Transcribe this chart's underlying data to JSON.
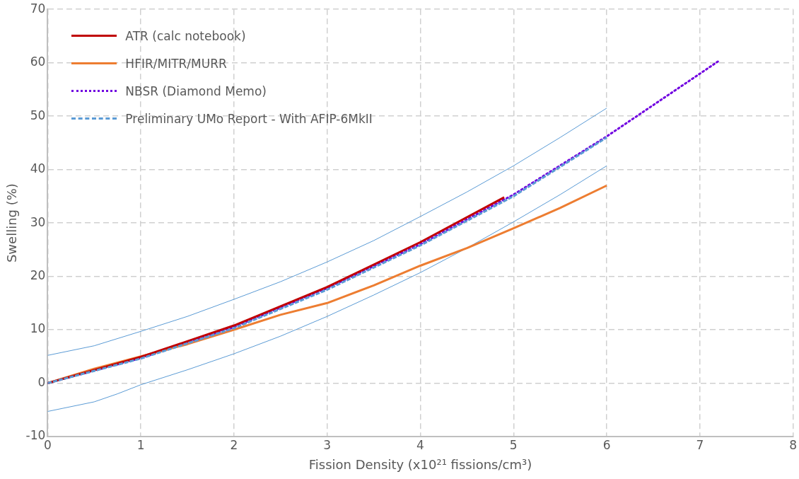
{
  "chart_data": {
    "type": "line",
    "xlabel": "Fission Density (x10²¹ fissions/cm³)",
    "ylabel": "Swelling (%)",
    "xlim": [
      0,
      8
    ],
    "xticks": [
      0,
      1,
      2,
      3,
      4,
      5,
      6,
      7,
      8
    ],
    "ylim": [
      -10,
      70
    ],
    "yticks": [
      -10,
      0,
      10,
      20,
      30,
      40,
      50,
      60,
      70
    ],
    "grid": true,
    "legend": "top left",
    "marker": "none",
    "series": [
      {
        "name": "ATR (calc notebook)",
        "color": "#c00000",
        "line_style": "solid",
        "x": [
          0,
          1,
          2,
          3,
          4,
          4.9
        ],
        "values": [
          0,
          4.9,
          10.8,
          18,
          26.4,
          34.8
        ]
      },
      {
        "name": "HFIR/MITR/MURR",
        "color": "#ed7d31",
        "line_style": "solid",
        "x": [
          0,
          0.5,
          1,
          1.5,
          2,
          2.5,
          3,
          3.5,
          4,
          4.5,
          5,
          5.5,
          6
        ],
        "values": [
          0,
          2.7,
          5,
          7.3,
          10,
          12.8,
          15,
          18.3,
          22,
          25.3,
          29,
          32.8,
          37
        ]
      },
      {
        "name": "NBSR (Diamond Memo)",
        "color": "#7000e0",
        "line_style": "dotted",
        "x": [
          0,
          1,
          2,
          3,
          4,
          5,
          6,
          7.2
        ],
        "values": [
          0,
          4.7,
          10.5,
          17.8,
          26,
          35.3,
          46.2,
          60.3
        ]
      },
      {
        "name": "Preliminary UMo Report - With AFIP-6MkII",
        "color": "#5b9bd5",
        "line_style": "dashed",
        "x": [
          0,
          1,
          2,
          3,
          4,
          5,
          6
        ],
        "values": [
          0,
          4.6,
          10.3,
          17.5,
          25.8,
          35,
          46
        ]
      },
      {
        "color": "#5b9bd5",
        "line_style": "solid",
        "x": [
          0,
          0.5,
          1,
          1.5,
          2,
          2.5,
          3,
          3.5,
          4,
          4.5,
          5,
          5.5,
          6
        ],
        "values": [
          5.2,
          7,
          9.7,
          12.5,
          15.7,
          19,
          22.7,
          26.7,
          31.2,
          35.8,
          40.7,
          46,
          51.5
        ]
      },
      {
        "color": "#5b9bd5",
        "line_style": "solid",
        "x": [
          0,
          0.5,
          0.75,
          1,
          1.5,
          2,
          2.5,
          3,
          3.5,
          4,
          4.5,
          5,
          5.5,
          6
        ],
        "values": [
          -5.3,
          -3.5,
          -2,
          -0.3,
          2.5,
          5.5,
          8.8,
          12.5,
          16.5,
          20.7,
          25.3,
          30.2,
          35.3,
          40.7
        ]
      }
    ]
  }
}
